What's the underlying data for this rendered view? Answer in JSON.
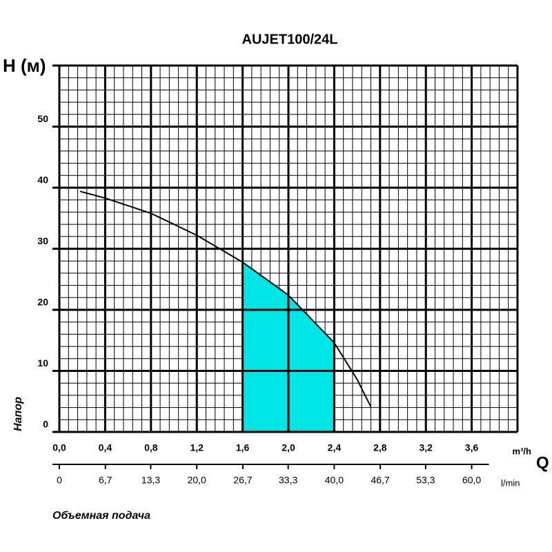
{
  "chart_data": {
    "type": "line",
    "title": "AUJET100/24L",
    "y_label": "H (м)",
    "y_caption": "Напор",
    "x_unit": "m³/h",
    "x_symbol": "Q",
    "x2_unit": "l/min",
    "x_caption": "Объемная подача",
    "x": [
      0.18,
      0.4,
      0.8,
      1.2,
      1.6,
      2.0,
      2.4,
      2.6,
      2.72
    ],
    "series": [
      {
        "color": "#000000",
        "values": [
          39.4,
          38.3,
          35.8,
          32.2,
          27.8,
          22.4,
          14.6,
          8.6,
          4.1
        ]
      }
    ],
    "highlight_range": [
      1.6,
      2.4
    ],
    "highlight_color": "#00e5e5",
    "xlim": [
      0,
      4.0
    ],
    "ylim": [
      0,
      60
    ],
    "xticks": [
      {
        "value": 0,
        "label": "0,0"
      },
      {
        "value": 0.4,
        "label": "0,4"
      },
      {
        "value": 0.8,
        "label": "0,8"
      },
      {
        "value": 1.2,
        "label": "1,2"
      },
      {
        "value": 1.6,
        "label": "1,6"
      },
      {
        "value": 2.0,
        "label": "2,0"
      },
      {
        "value": 2.4,
        "label": "2,4"
      },
      {
        "value": 2.8,
        "label": "2,8"
      },
      {
        "value": 3.2,
        "label": "3,2"
      },
      {
        "value": 3.6,
        "label": "3,6"
      }
    ],
    "x2lim": [
      0,
      66.67
    ],
    "x2ticks": [
      0,
      {
        "value": 6.7,
        "label": "6,7"
      },
      {
        "value": 13.3,
        "label": "13,3"
      },
      {
        "value": 20.0,
        "label": "20,0"
      },
      {
        "value": 26.7,
        "label": "26,7"
      },
      {
        "value": 33.3,
        "label": "33,3"
      },
      {
        "value": 40.0,
        "label": "40,0"
      },
      {
        "value": 46.7,
        "label": "46,7"
      },
      {
        "value": 53.3,
        "label": "53,3"
      },
      {
        "value": 60.0,
        "label": "60,0"
      }
    ],
    "yticks": [
      0,
      10,
      20,
      30,
      40,
      50
    ],
    "grid": true,
    "minor_grid": true
  }
}
